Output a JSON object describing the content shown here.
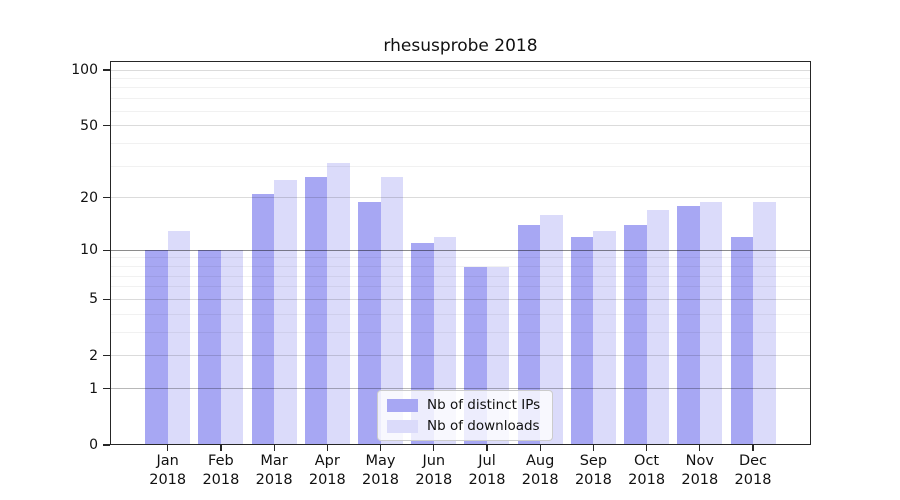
{
  "figure": {
    "title": "rhesusprobe 2018"
  },
  "chart_data": {
    "type": "bar",
    "title": "rhesusprobe 2018",
    "categories": [
      "Jan",
      "Feb",
      "Mar",
      "Apr",
      "May",
      "Jun",
      "Jul",
      "Aug",
      "Sep",
      "Oct",
      "Nov",
      "Dec"
    ],
    "year_label": "2018",
    "series": [
      {
        "name": "Nb of distinct IPs",
        "color": "#a7a7f3",
        "values": [
          10,
          10,
          21,
          26,
          19,
          11,
          8,
          14,
          12,
          14,
          18,
          12
        ]
      },
      {
        "name": "Nb of downloads",
        "color": "#dbdbfa",
        "values": [
          13,
          10,
          25,
          31,
          26,
          12,
          8,
          16,
          13,
          17,
          19,
          19
        ]
      }
    ],
    "xlabel": "",
    "ylabel": "",
    "yscale": "log1p",
    "ylim": [
      0,
      112
    ],
    "yticks": [
      0,
      1,
      2,
      5,
      10,
      20,
      50,
      100
    ],
    "ytick_labels": [
      "0",
      "1",
      "2",
      "5",
      "10",
      "20",
      "50",
      "100"
    ],
    "minor_gridlines": [
      3,
      4,
      6,
      7,
      8,
      9,
      30,
      40,
      60,
      70,
      80,
      90
    ],
    "grid": true,
    "legend_position": "lower center"
  }
}
